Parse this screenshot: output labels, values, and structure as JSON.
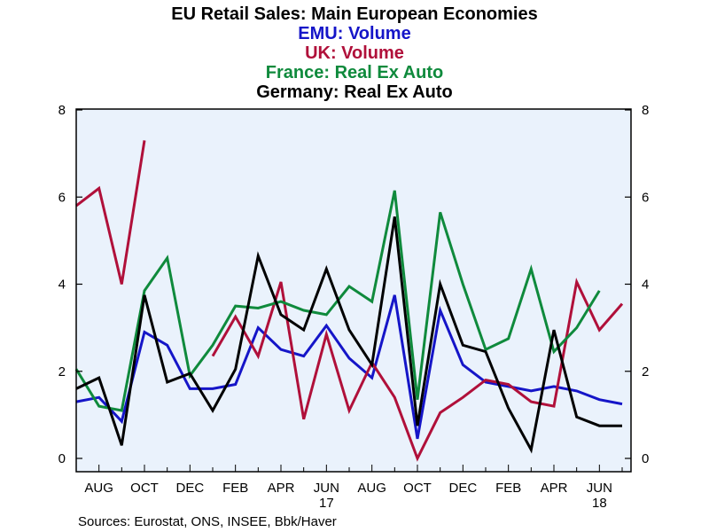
{
  "chart_data": {
    "type": "line",
    "title": "EU Retail Sales: Main European Economies",
    "subtitles": [
      {
        "text": "EMU: Volume",
        "color": "#1515c8"
      },
      {
        "text": "UK: Volume",
        "color": "#b0103a"
      },
      {
        "text": "France: Real Ex Auto",
        "color": "#0f8a3c"
      },
      {
        "text": "Germany: Real Ex Auto",
        "color": "#000000"
      }
    ],
    "xlabel": "",
    "ylabel": "",
    "ylim": [
      0,
      8
    ],
    "yticks": [
      "0",
      "2",
      "4",
      "6",
      "8"
    ],
    "x": [
      "2016-07",
      "2016-08",
      "2016-09",
      "2016-10",
      "2016-11",
      "2016-12",
      "2017-01",
      "2017-02",
      "2017-03",
      "2017-04",
      "2017-05",
      "2017-06",
      "2017-07",
      "2017-08",
      "2017-09",
      "2017-10",
      "2017-11",
      "2017-12",
      "2018-01",
      "2018-02",
      "2018-03",
      "2018-04",
      "2018-05",
      "2018-06",
      "2018-07"
    ],
    "xtick_labels": [
      {
        "index": 1,
        "label": "AUG"
      },
      {
        "index": 3,
        "label": "OCT"
      },
      {
        "index": 5,
        "label": "DEC"
      },
      {
        "index": 7,
        "label": "FEB"
      },
      {
        "index": 9,
        "label": "APR"
      },
      {
        "index": 11,
        "label": "JUN",
        "sub": "17"
      },
      {
        "index": 13,
        "label": "AUG"
      },
      {
        "index": 15,
        "label": "OCT"
      },
      {
        "index": 17,
        "label": "DEC"
      },
      {
        "index": 19,
        "label": "FEB"
      },
      {
        "index": 21,
        "label": "APR"
      },
      {
        "index": 23,
        "label": "JUN",
        "sub": "18"
      }
    ],
    "grid": false,
    "background": "#eaf2fc",
    "series": [
      {
        "name": "EMU: Volume",
        "color": "#1515c8",
        "values": [
          1.3,
          1.4,
          0.85,
          2.9,
          2.6,
          1.6,
          1.6,
          1.7,
          3.0,
          2.5,
          2.35,
          3.05,
          2.3,
          1.85,
          3.75,
          0.45,
          3.4,
          2.15,
          1.75,
          1.65,
          1.55,
          1.65,
          1.55,
          1.35,
          1.25
        ]
      },
      {
        "name": "UK: Volume",
        "color": "#b0103a",
        "values": [
          5.8,
          6.2,
          4.0,
          7.3,
          null,
          null,
          2.35,
          3.25,
          2.35,
          4.05,
          0.9,
          2.85,
          1.1,
          2.2,
          1.4,
          0.0,
          1.05,
          1.4,
          1.8,
          1.7,
          1.3,
          1.2,
          4.05,
          2.95,
          3.55
        ]
      },
      {
        "name": "France: Real Ex Auto",
        "color": "#0f8a3c",
        "values": [
          2.05,
          1.2,
          1.1,
          3.85,
          4.6,
          1.9,
          2.6,
          3.5,
          3.45,
          3.6,
          3.4,
          3.3,
          3.95,
          3.6,
          6.15,
          1.35,
          5.65,
          4.0,
          2.5,
          2.75,
          4.35,
          2.45,
          3.0,
          3.85,
          null
        ]
      },
      {
        "name": "Germany: Real Ex Auto",
        "color": "#000000",
        "values": [
          1.6,
          1.85,
          0.3,
          3.75,
          1.75,
          1.95,
          1.1,
          2.05,
          4.65,
          3.3,
          2.95,
          4.35,
          2.95,
          2.15,
          5.55,
          0.75,
          4.0,
          2.6,
          2.45,
          1.15,
          0.2,
          2.95,
          0.95,
          0.75,
          0.75
        ]
      }
    ]
  },
  "footer": {
    "sources": "Sources:  Eurostat, ONS, INSEE, Bbk/Haver"
  }
}
